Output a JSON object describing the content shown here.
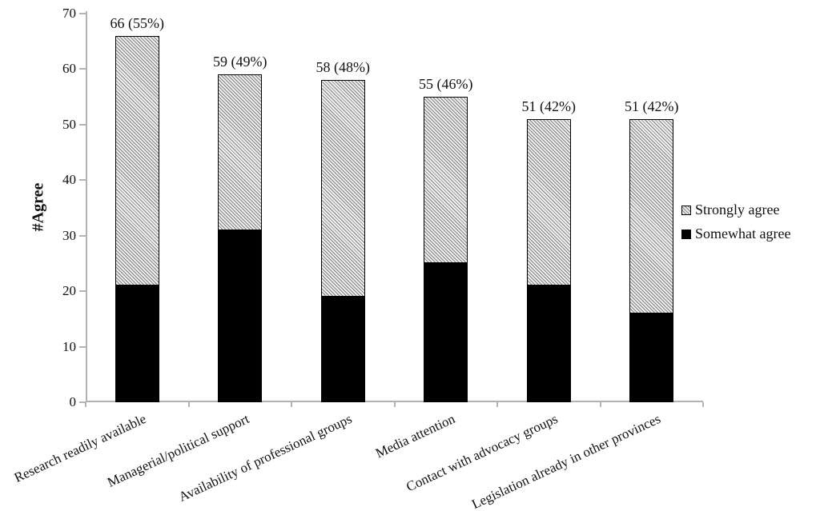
{
  "chart_data": {
    "type": "bar",
    "stacked": true,
    "title": "",
    "xlabel": "",
    "ylabel": "#Agree",
    "ylim": [
      0,
      70
    ],
    "yticks": [
      0,
      10,
      20,
      30,
      40,
      50,
      60,
      70
    ],
    "grid": false,
    "legend_position": "right",
    "categories": [
      "Research readily available",
      "Managerial/political support",
      "Availability of professional groups",
      "Media attention",
      "Contact with advocacy groups",
      "Legislation already in other provinces"
    ],
    "series": [
      {
        "name": "Somewhat agree",
        "values": [
          21,
          31,
          19,
          25,
          21,
          16
        ],
        "color": "#000000",
        "pattern": "solid"
      },
      {
        "name": "Strongly agree",
        "values": [
          45,
          28,
          39,
          30,
          30,
          35
        ],
        "color": "#dbdbdb",
        "pattern": "diagonal-hatch"
      }
    ],
    "totals": [
      66,
      59,
      58,
      55,
      51,
      51
    ],
    "bar_labels": [
      "66 (55%)",
      "59 (49%)",
      "58 (48%)",
      "55 (46%)",
      "51 (42%)",
      "51 (42%)"
    ],
    "legend": [
      {
        "label": "Strongly agree",
        "swatch": "diagonal-hatch"
      },
      {
        "label": "Somewhat agree",
        "swatch": "solid-black"
      }
    ],
    "colors": {
      "axis": "#b3b3b3",
      "text": "#111111",
      "somewhat_fill": "#000000",
      "strongly_fill": "#dbdbdb"
    }
  }
}
